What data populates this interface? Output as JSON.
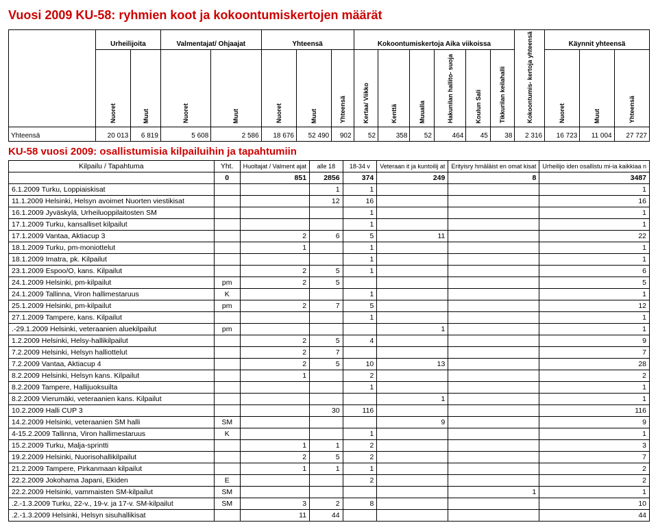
{
  "title": "Vuosi 2009 KU-58: ryhmien koot ja kokoontumiskertojen määrät",
  "summary": {
    "groups": [
      "Urheilijoita",
      "Valmentajat/ Ohjaajat",
      "Yhteensä",
      "Kokoontumiskertoja Aika viikoissa",
      "Kokoontumis- kertoja yhteensä",
      "Käynnit yhteensä"
    ],
    "cols": [
      "Nuoret",
      "Muut",
      "Nuoret",
      "Muut",
      "Nuoret",
      "Muut",
      "Yhteensä",
      "Kertaa/ Viikko",
      "Kenttä",
      "Muualla",
      "Hakunilan hallito- suoja",
      "Koulun Sali",
      "Tikkurilan keilahalli",
      "Kokoontumis- kertoja yhteensä",
      "Nuoret",
      "Muut",
      "Yhteensä"
    ],
    "row_label": "Yhteensä",
    "row": [
      "20 013",
      "6 819",
      "5 608",
      "2 586",
      "18 676",
      "52 490",
      "902",
      "52",
      "358",
      "52",
      "464",
      "45",
      "38",
      "2 316",
      "16 723",
      "11 004",
      "27 727"
    ]
  },
  "subtitle": "KU-58 vuosi 2009: osallistumisia kilpailuihin ja tapahtumiin",
  "details": {
    "head": {
      "kil": "Kilpailu / Tapahtuma",
      "yht": "Yht.",
      "cols": [
        "Huoltajat / Valment ajat",
        "alle 18",
        "18-34 v",
        "Veteraan it ja kuntoilij at",
        "Erityisry hmäläist en omat kisat",
        "Urheilijo iden osallistu mi-ia kaikkiaa n"
      ]
    },
    "totals": [
      "0",
      "851",
      "2856",
      "374",
      "249",
      "8",
      "3487"
    ],
    "rows": [
      {
        "n": "6.1.2009 Turku, Loppiaiskisat",
        "y": "",
        "c": [
          "",
          "1",
          "1",
          "",
          "",
          "1"
        ]
      },
      {
        "n": "11.1.2009 Helsinki, Helsyn avoimet Nuorten viestikisat",
        "y": "",
        "c": [
          "",
          "12",
          "16",
          "",
          "",
          "16"
        ]
      },
      {
        "n": "16.1.2009 Jyväskylä, Urheiluoppilaitosten SM",
        "y": "",
        "c": [
          "",
          "",
          "1",
          "",
          "",
          "1"
        ]
      },
      {
        "n": "17.1.2009 Turku, kansalliset kilpailut",
        "y": "",
        "c": [
          "",
          "",
          "1",
          "",
          "",
          "1"
        ]
      },
      {
        "n": "17.1.2009 Vantaa, Aktiacup 3",
        "y": "",
        "c": [
          "2",
          "6",
          "5",
          "11",
          "",
          "22"
        ]
      },
      {
        "n": "18.1.2009 Turku, pm-moniottelut",
        "y": "",
        "c": [
          "1",
          "",
          "1",
          "",
          "",
          "1"
        ]
      },
      {
        "n": "18.1.2009 Imatra, pk. Kilpailut",
        "y": "",
        "c": [
          "",
          "",
          "1",
          "",
          "",
          "1"
        ]
      },
      {
        "n": "23.1.2009 Espoo/O, kans. Kilpailut",
        "y": "",
        "c": [
          "2",
          "5",
          "1",
          "",
          "",
          "6"
        ]
      },
      {
        "n": "24.1.2009 Helsinki, pm-kilpailut",
        "y": "pm",
        "c": [
          "2",
          "5",
          "",
          "",
          "",
          "5"
        ]
      },
      {
        "n": "24.1.2009 Tallinna, Viron hallimestaruus",
        "y": "K",
        "c": [
          "",
          "",
          "1",
          "",
          "",
          "1"
        ]
      },
      {
        "n": "25.1.2009 Helsinki, pm-kilpailut",
        "y": "pm",
        "c": [
          "2",
          "7",
          "5",
          "",
          "",
          "12"
        ]
      },
      {
        "n": "27.1.2009 Tampere, kans. Kilpailut",
        "y": "",
        "c": [
          "",
          "",
          "1",
          "",
          "",
          "1"
        ]
      },
      {
        "n": ".-29.1.2009 Helsinki, veteraanien aluekilpailut",
        "y": "pm",
        "c": [
          "",
          "",
          "",
          "1",
          "",
          "1"
        ]
      },
      {
        "n": "1.2.2009 Helsinki, Helsy-hallikilpailut",
        "y": "",
        "c": [
          "2",
          "5",
          "4",
          "",
          "",
          "9"
        ]
      },
      {
        "n": "7.2.2009 Helsinki, Helsyn halliottelut",
        "y": "",
        "c": [
          "2",
          "7",
          "",
          "",
          "",
          "7"
        ]
      },
      {
        "n": "7.2.2009 Vantaa, Aktiacup 4",
        "y": "",
        "c": [
          "2",
          "5",
          "10",
          "13",
          "",
          "28"
        ]
      },
      {
        "n": "8.2.2009 Helsinki, Helsyn kans. Kilpailut",
        "y": "",
        "c": [
          "1",
          "",
          "2",
          "",
          "",
          "2"
        ]
      },
      {
        "n": "8.2.2009 Tampere, Hallijuoksuilta",
        "y": "",
        "c": [
          "",
          "",
          "1",
          "",
          "",
          "1"
        ]
      },
      {
        "n": "8.2.2009 Vierumäki, veteraanien kans. Kilpailut",
        "y": "",
        "c": [
          "",
          "",
          "",
          "1",
          "",
          "1"
        ]
      },
      {
        "n": "10.2.2009 Halli CUP 3",
        "y": "",
        "c": [
          "",
          "30",
          "116",
          "",
          "",
          "116"
        ]
      },
      {
        "n": "14.2.2009 Helsinki, veteraanien SM halli",
        "y": "SM",
        "c": [
          "",
          "",
          "",
          "9",
          "",
          "9"
        ]
      },
      {
        "n": "4-15.2.2009 Tallinna, Viron hallimestaruus",
        "y": "K",
        "c": [
          "",
          "",
          "1",
          "",
          "",
          "1"
        ]
      },
      {
        "n": "15.2.2009 Turku, Malja-sprintti",
        "y": "",
        "c": [
          "1",
          "1",
          "2",
          "",
          "",
          "3"
        ]
      },
      {
        "n": "19.2.2009 Helsinki, Nuorisohallikilpailut",
        "y": "",
        "c": [
          "2",
          "5",
          "2",
          "",
          "",
          "7"
        ]
      },
      {
        "n": "21.2.2009 Tampere, Pirkanmaan kilpailut",
        "y": "",
        "c": [
          "1",
          "1",
          "1",
          "",
          "",
          "2"
        ]
      },
      {
        "n": "22.2.2009 Jokohama Japani, Ekiden",
        "y": "E",
        "c": [
          "",
          "",
          "2",
          "",
          "",
          "2"
        ]
      },
      {
        "n": "22.2.2009 Helsinki, vammaisten SM-kilpailut",
        "y": "SM",
        "c": [
          "",
          "",
          "",
          "",
          "1",
          "1"
        ]
      },
      {
        "n": ".2.-1.3.2009 Turku, 22-v., 19-v. ja 17-v. SM-kilpailut",
        "y": "SM",
        "c": [
          "3",
          "2",
          "8",
          "",
          "",
          "10"
        ]
      },
      {
        "n": ".2.-1.3.2009 Helsinki, Helsyn sisuhallikisat",
        "y": "",
        "c": [
          "11",
          "44",
          "",
          "",
          "",
          "44"
        ]
      }
    ]
  }
}
